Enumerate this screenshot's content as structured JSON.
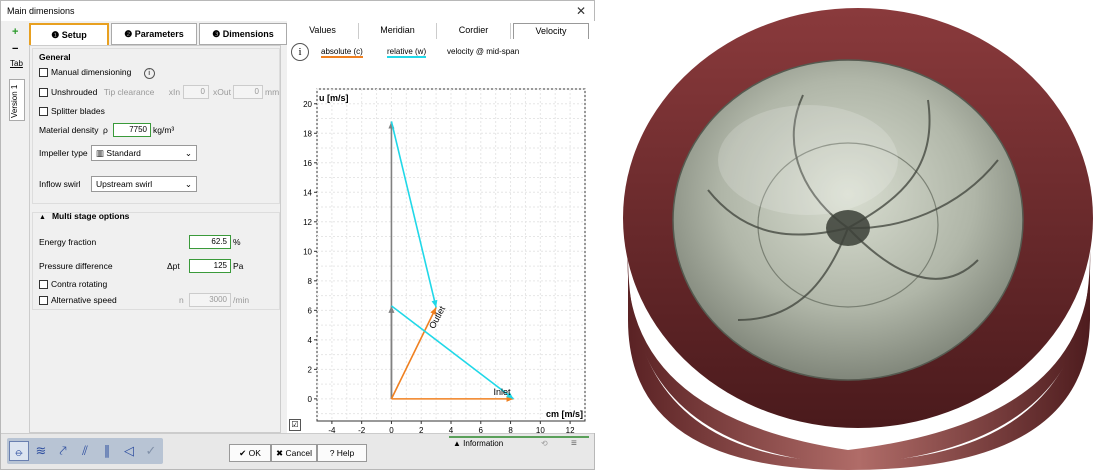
{
  "window": {
    "title": "Main dimensions",
    "close_glyph": "✕"
  },
  "side_tools": {
    "add": "+",
    "remove": "−",
    "tab": "Tab",
    "version": "Version 1"
  },
  "tabs": [
    {
      "label": "❶ Setup"
    },
    {
      "label": "❷ Parameters"
    },
    {
      "label": "❸ Dimensions"
    }
  ],
  "setup": {
    "general_heading": "General",
    "manual_dim": "Manual dimensioning",
    "unshrouded": "Unshrouded",
    "tip_clearance": "Tip clearance",
    "xin_label": "xIn",
    "xin_value": "0",
    "xout_label": "xOut",
    "xout_value": "0",
    "mm_unit": "mm",
    "splitter": "Splitter blades",
    "density_label": "Material density",
    "density_sym": "ρ",
    "density_value": "7750",
    "density_unit": "kg/m³",
    "impeller_label": "Impeller type",
    "impeller_value": "Standard",
    "inflow_label": "Inflow swirl",
    "inflow_value": "Upstream swirl",
    "multistage_heading": "Multi stage options",
    "energy_label": "Energy fraction",
    "energy_value": "62.5",
    "energy_unit": "%",
    "pressure_label": "Pressure difference",
    "pressure_sym": "Δpt",
    "pressure_value": "125",
    "pressure_unit": "Pa",
    "contra": "Contra rotating",
    "altspeed": "Alternative speed",
    "n_label": "n",
    "speed_value": "3000",
    "speed_unit": "/min"
  },
  "plot_tabs": [
    "Values",
    "Meridian",
    "Cordier",
    "Velocity"
  ],
  "plot_legend": {
    "absolute": "absolute (c)",
    "relative": "relative (w)",
    "note": "velocity @ mid-span"
  },
  "chart_data": {
    "type": "line",
    "xlabel": "cm [m/s]",
    "ylabel": "u [m/s]",
    "xlim": [
      -5,
      13
    ],
    "ylim": [
      -1.5,
      21
    ],
    "xticks": [
      -4,
      -2,
      0,
      2,
      4,
      6,
      8,
      10,
      12
    ],
    "yticks": [
      0,
      2,
      4,
      6,
      8,
      10,
      12,
      14,
      16,
      18,
      20
    ],
    "grid": true,
    "annotations": [
      "Outlet",
      "Inlet"
    ],
    "colors": {
      "absolute": "#f08020",
      "relative": "#20d8e8",
      "u": "#808080"
    },
    "vectors": [
      {
        "series": "u",
        "from": [
          0,
          0
        ],
        "to": [
          0,
          18.8
        ]
      },
      {
        "series": "u",
        "from": [
          0,
          0
        ],
        "to": [
          0,
          6.3
        ]
      },
      {
        "series": "absolute",
        "from": [
          0,
          0
        ],
        "to": [
          3.0,
          6.2
        ]
      },
      {
        "series": "absolute",
        "from": [
          0,
          0
        ],
        "to": [
          8.2,
          0
        ]
      },
      {
        "series": "relative",
        "from": [
          0,
          18.8
        ],
        "to": [
          3.0,
          6.2
        ]
      },
      {
        "series": "relative",
        "from": [
          0,
          6.3
        ],
        "to": [
          8.2,
          0
        ]
      }
    ]
  },
  "bottom": {
    "ok": "✔ OK",
    "cancel": "✖ Cancel",
    "help": "? Help",
    "information": "▲  Information"
  }
}
